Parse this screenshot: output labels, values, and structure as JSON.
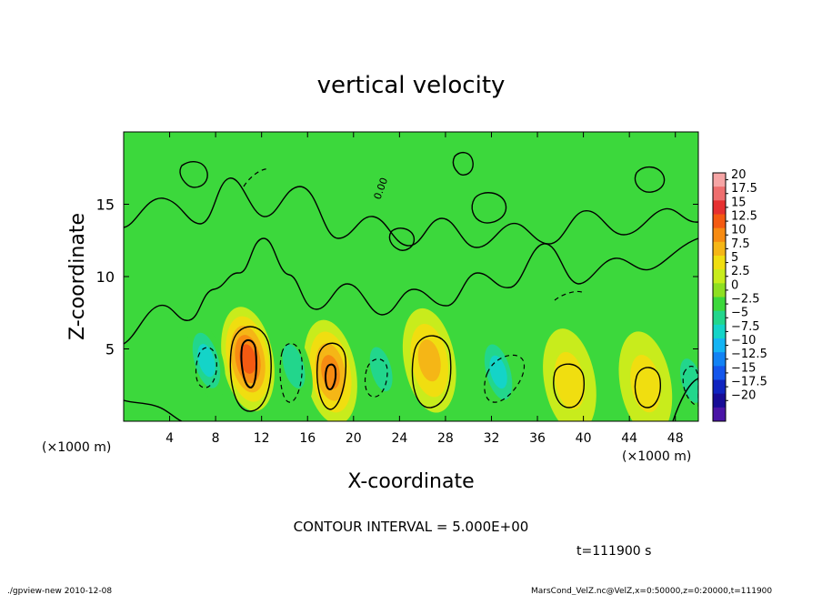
{
  "chart_data": {
    "type": "heatmap",
    "title": "vertical velocity",
    "xlabel": "X-coordinate",
    "ylabel": "Z-coordinate",
    "x_unit_left": "(×1000 m)",
    "x_unit_right": "(×1000 m)",
    "xlim": [
      0,
      50
    ],
    "ylim": [
      0,
      20
    ],
    "x_ticks": [
      "4",
      "8",
      "12",
      "16",
      "20",
      "24",
      "28",
      "32",
      "36",
      "40",
      "44",
      "48"
    ],
    "x_tick_values": [
      4,
      8,
      12,
      16,
      20,
      24,
      28,
      32,
      36,
      40,
      44,
      48
    ],
    "y_ticks": [
      "5",
      "10",
      "15"
    ],
    "y_tick_values": [
      5,
      10,
      15
    ],
    "contour_interval": "CONTOUR INTERVAL = 5.000E+00",
    "time_label": "t=111900 s",
    "contour_label": "0.00",
    "colorbar_labels": [
      "20",
      "17.5",
      "15",
      "12.5",
      "10",
      "7.5",
      "5",
      "2.5",
      "0",
      "−2.5",
      "−5",
      "−7.5",
      "−10",
      "−12.5",
      "−15",
      "−17.5",
      "−20"
    ],
    "colorbar_colors": [
      "#f6a5a5",
      "#ee6e6e",
      "#e63030",
      "#f45a12",
      "#f78b12",
      "#f5b616",
      "#f0de10",
      "#c8ec1c",
      "#8edf22",
      "#3cd83c",
      "#22d68c",
      "#14d4c8",
      "#14b4f4",
      "#1282f4",
      "#1456ec",
      "#1024c0",
      "#180c96",
      "#4a14a6"
    ],
    "updrafts": [
      {
        "x": 10.8,
        "z": 4.3,
        "w": 13
      },
      {
        "x": 18.0,
        "z": 3.4,
        "w": 11
      },
      {
        "x": 26.6,
        "z": 4.2,
        "w": 8
      },
      {
        "x": 38.8,
        "z": 2.8,
        "w": 5
      },
      {
        "x": 45.4,
        "z": 2.6,
        "w": 5
      }
    ],
    "downdrafts": [
      {
        "x": 7.2,
        "z": 4.2,
        "w": -7
      },
      {
        "x": 14.8,
        "z": 3.8,
        "w": -6
      },
      {
        "x": 22.4,
        "z": 3.6,
        "w": -5
      },
      {
        "x": 32.6,
        "z": 3.4,
        "w": -7
      },
      {
        "x": 49.4,
        "z": 2.8,
        "w": -6
      }
    ]
  },
  "footer": {
    "left": "./gpview-new  2010-12-08",
    "right": "MarsCond_VelZ.nc@VelZ,x=0:50000,z=0:20000,t=111900"
  }
}
